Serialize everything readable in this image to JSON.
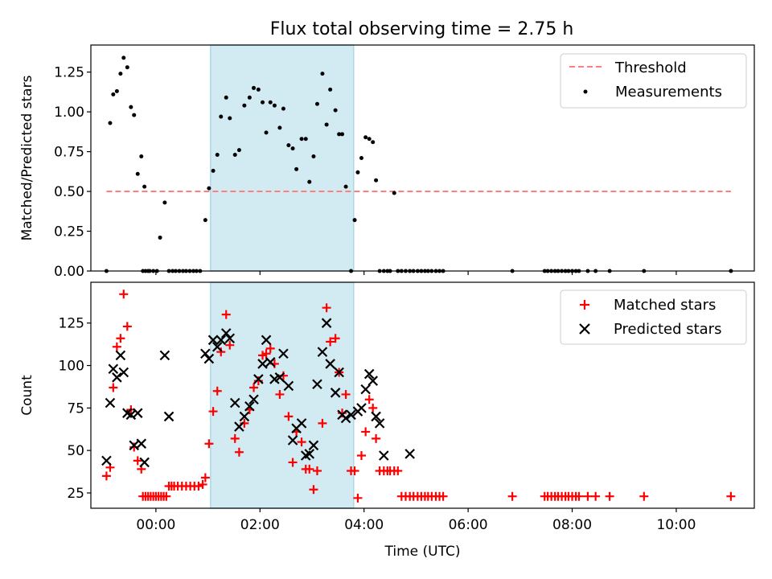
{
  "figure": {
    "title": "Flux total observing time = 2.75 h"
  },
  "colors": {
    "band": "#add8e6",
    "threshold": "#ff7f7f",
    "matched": "#ff0000",
    "predicted": "#000000",
    "measurements": "#000000"
  },
  "chart_data": [
    {
      "type": "scatter",
      "ylabel": "Matched/Predicted stars",
      "xlim": [
        -1.25,
        11.5
      ],
      "ylim": [
        0,
        1.42
      ],
      "yticks": [
        0,
        0.25,
        0.5,
        0.75,
        1.0,
        1.25
      ],
      "ytick_labels": [
        "0.00",
        "0.25",
        "0.50",
        "0.75",
        "1.00",
        "1.25"
      ],
      "highlight_band": [
        1.05,
        3.8
      ],
      "threshold": {
        "name": "Threshold",
        "y": 0.5,
        "x": [
          -0.95,
          11.05
        ]
      },
      "legend": {
        "position": "upper-right",
        "entries": [
          "Threshold",
          "Measurements"
        ]
      },
      "series": [
        {
          "name": "Measurements",
          "x": [
            -0.95,
            -0.88,
            -0.82,
            -0.75,
            -0.68,
            -0.62,
            -0.55,
            -0.48,
            -0.42,
            -0.35,
            -0.28,
            -0.22,
            -0.15,
            -0.25,
            -0.2,
            -0.12,
            -0.05,
            0.02,
            0.08,
            0.17,
            0.25,
            0.32,
            0.38,
            0.45,
            0.52,
            0.58,
            0.65,
            0.72,
            0.78,
            0.85,
            0.95,
            1.02,
            1.1,
            1.18,
            1.25,
            1.35,
            1.42,
            1.52,
            1.6,
            1.7,
            1.8,
            1.88,
            1.97,
            2.05,
            2.12,
            2.2,
            2.28,
            2.38,
            2.45,
            2.55,
            2.63,
            2.7,
            2.8,
            2.88,
            2.95,
            3.03,
            3.1,
            3.2,
            3.28,
            3.35,
            3.45,
            3.52,
            3.58,
            3.65,
            3.75,
            3.82,
            3.88,
            3.95,
            4.03,
            4.1,
            4.17,
            4.23,
            4.3,
            4.38,
            4.45,
            4.5,
            4.58,
            4.65,
            4.72,
            4.8,
            4.88,
            4.95,
            5.03,
            5.1,
            5.17,
            5.23,
            5.3,
            5.38,
            5.45,
            5.52,
            6.85,
            7.47,
            7.53,
            7.6,
            7.67,
            7.73,
            7.8,
            7.87,
            7.93,
            8.0,
            8.07,
            8.13,
            8.3,
            8.45,
            8.72,
            9.38,
            11.05
          ],
          "y": [
            0.0,
            0.93,
            1.11,
            1.13,
            1.24,
            1.34,
            1.28,
            1.03,
            0.98,
            0.61,
            0.72,
            0.53,
            0.0,
            0.0,
            0.0,
            0.0,
            0.0,
            0.0,
            0.21,
            0.43,
            0.0,
            0.0,
            0.0,
            0.0,
            0.0,
            0.0,
            0.0,
            0.0,
            0.0,
            0.0,
            0.32,
            0.52,
            0.63,
            0.73,
            0.97,
            1.09,
            0.96,
            0.73,
            0.76,
            1.04,
            1.09,
            1.15,
            1.14,
            1.06,
            0.87,
            1.06,
            1.04,
            0.9,
            1.02,
            0.79,
            0.77,
            0.64,
            0.83,
            0.83,
            0.56,
            0.72,
            1.05,
            1.24,
            0.92,
            1.14,
            1.01,
            0.86,
            0.86,
            0.53,
            0.0,
            0.32,
            0.62,
            0.71,
            0.84,
            0.83,
            0.81,
            0.57,
            0.0,
            0.0,
            0.0,
            0.0,
            0.49,
            0.0,
            0.0,
            0.0,
            0.0,
            0.0,
            0.0,
            0.0,
            0.0,
            0.0,
            0.0,
            0.0,
            0.0,
            0.0,
            0.0,
            0.0,
            0.0,
            0.0,
            0.0,
            0.0,
            0.0,
            0.0,
            0.0,
            0.0,
            0.0,
            0.0,
            0.0,
            0.0,
            0.0,
            0.0,
            0.0
          ]
        }
      ]
    },
    {
      "type": "scatter",
      "xlabel": "Time (UTC)",
      "ylabel": "Count",
      "xlim": [
        -1.25,
        11.5
      ],
      "ylim": [
        16,
        149
      ],
      "xticks": [
        0,
        2,
        4,
        6,
        8,
        10
      ],
      "xtick_labels": [
        "00:00",
        "02:00",
        "04:00",
        "06:00",
        "08:00",
        "10:00"
      ],
      "yticks": [
        25,
        50,
        75,
        100,
        125
      ],
      "ytick_labels": [
        "25",
        "50",
        "75",
        "100",
        "125"
      ],
      "highlight_band": [
        1.05,
        3.8
      ],
      "legend": {
        "position": "upper-right",
        "entries": [
          "Matched stars",
          "Predicted stars"
        ]
      },
      "series": [
        {
          "name": "Matched stars",
          "x": [
            -0.95,
            -0.88,
            -0.82,
            -0.75,
            -0.68,
            -0.62,
            -0.55,
            -0.48,
            -0.42,
            -0.35,
            -0.28,
            -0.25,
            -0.2,
            -0.15,
            -0.1,
            -0.05,
            0.0,
            0.05,
            0.1,
            0.15,
            0.2,
            0.25,
            0.3,
            0.35,
            0.42,
            0.5,
            0.58,
            0.66,
            0.74,
            0.82,
            0.9,
            0.95,
            1.02,
            1.1,
            1.18,
            1.25,
            1.35,
            1.42,
            1.52,
            1.6,
            1.7,
            1.8,
            1.88,
            1.97,
            2.05,
            2.12,
            2.2,
            2.28,
            2.38,
            2.45,
            2.55,
            2.63,
            2.7,
            2.8,
            2.88,
            2.95,
            3.03,
            3.1,
            3.2,
            3.28,
            3.35,
            3.45,
            3.52,
            3.58,
            3.65,
            3.75,
            3.82,
            3.88,
            3.95,
            4.03,
            4.1,
            4.17,
            4.23,
            4.3,
            4.38,
            4.45,
            4.5,
            4.58,
            4.65,
            4.72,
            4.8,
            4.88,
            4.95,
            5.03,
            5.1,
            5.17,
            5.23,
            5.3,
            5.38,
            5.45,
            5.52,
            6.85,
            7.47,
            7.53,
            7.6,
            7.67,
            7.73,
            7.8,
            7.87,
            7.93,
            8.0,
            8.07,
            8.13,
            8.3,
            8.45,
            8.72,
            9.38,
            11.05
          ],
          "y": [
            35,
            40,
            87,
            111,
            116,
            142,
            123,
            74,
            52,
            44,
            39,
            23,
            23,
            23,
            23,
            23,
            23,
            23,
            23,
            23,
            23,
            29,
            29,
            29,
            29,
            29,
            29,
            29,
            29,
            29,
            30,
            34,
            54,
            73,
            85,
            108,
            130,
            112,
            57,
            49,
            66,
            74,
            87,
            91,
            106,
            107,
            110,
            101,
            83,
            94,
            70,
            43,
            61,
            55,
            39,
            39,
            27,
            38,
            66,
            134,
            114,
            116,
            96,
            72,
            83,
            38,
            38,
            22,
            47,
            61,
            80,
            75,
            57,
            38,
            38,
            38,
            38,
            38,
            38,
            23,
            23,
            23,
            23,
            23,
            23,
            23,
            23,
            23,
            23,
            23,
            23,
            23,
            23,
            23,
            23,
            23,
            23,
            23,
            23,
            23,
            23,
            23,
            23,
            23,
            23,
            23,
            23,
            23
          ]
        },
        {
          "name": "Predicted stars",
          "x": [
            -0.95,
            -0.88,
            -0.82,
            -0.75,
            -0.68,
            -0.62,
            -0.55,
            -0.48,
            -0.42,
            -0.35,
            -0.28,
            -0.22,
            0.17,
            0.25,
            0.95,
            1.02,
            1.1,
            1.18,
            1.25,
            1.35,
            1.42,
            1.52,
            1.6,
            1.7,
            1.8,
            1.88,
            1.97,
            2.05,
            2.12,
            2.2,
            2.28,
            2.38,
            2.45,
            2.55,
            2.63,
            2.7,
            2.8,
            2.88,
            2.95,
            3.03,
            3.1,
            3.2,
            3.28,
            3.35,
            3.45,
            3.52,
            3.58,
            3.65,
            3.75,
            3.88,
            3.95,
            4.03,
            4.1,
            4.17,
            4.23,
            4.3,
            4.38,
            4.88
          ],
          "y": [
            44,
            78,
            98,
            93,
            106,
            96,
            72,
            71,
            53,
            72,
            54,
            43,
            106,
            70,
            107,
            104,
            115,
            111,
            115,
            119,
            116,
            78,
            64,
            70,
            76,
            80,
            92,
            101,
            115,
            102,
            92,
            93,
            107,
            88,
            56,
            63,
            66,
            47,
            48,
            53,
            89,
            108,
            125,
            101,
            84,
            96,
            71,
            69,
            71,
            73,
            75,
            86,
            95,
            91,
            70,
            66,
            47,
            48
          ]
        }
      ]
    }
  ]
}
